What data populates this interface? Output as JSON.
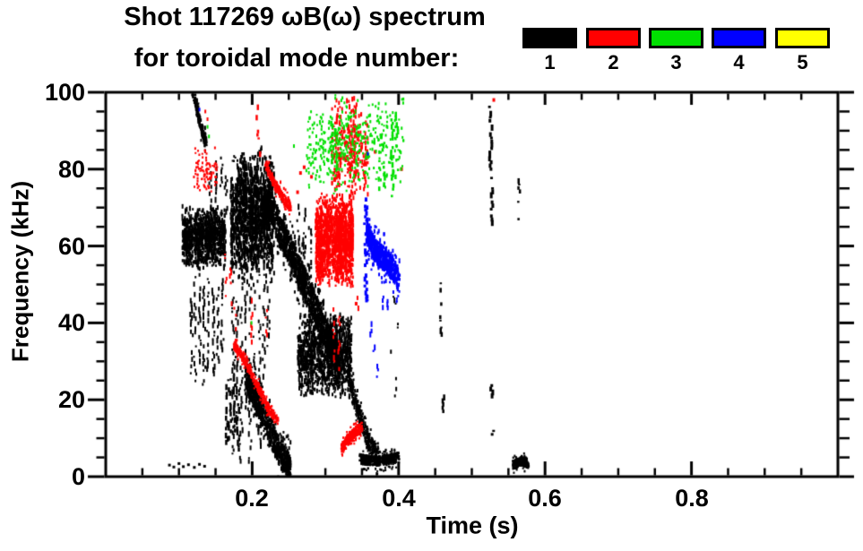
{
  "figure": {
    "title_line1": "Shot 117269 ωB(ω) spectrum",
    "title_line2": "for toroidal mode number:"
  },
  "chart_data": {
    "type": "scatter",
    "title": "Shot 117269 ωB(ω) spectrum for toroidal mode number: 1 2 3 4 5",
    "xlabel": "Time (s)",
    "ylabel": "Frequency (kHz)",
    "xlim": [
      0,
      1.0
    ],
    "ylim": [
      0,
      100
    ],
    "grid": false,
    "x_ticks": [
      {
        "v": 0.2,
        "label": "0.2"
      },
      {
        "v": 0.4,
        "label": "0.4"
      },
      {
        "v": 0.6,
        "label": "0.6"
      },
      {
        "v": 0.8,
        "label": "0.8"
      }
    ],
    "x_minor_step": 0.05,
    "y_ticks": [
      {
        "v": 0,
        "label": "0"
      },
      {
        "v": 20,
        "label": "20"
      },
      {
        "v": 40,
        "label": "40"
      },
      {
        "v": 60,
        "label": "60"
      },
      {
        "v": 80,
        "label": "80"
      },
      {
        "v": 100,
        "label": "100"
      }
    ],
    "y_minor_step": 5,
    "legend": [
      {
        "mode": 1,
        "label": "1",
        "color": "#000000"
      },
      {
        "mode": 2,
        "label": "2",
        "color": "#ff0000"
      },
      {
        "mode": 3,
        "label": "3",
        "color": "#00e000"
      },
      {
        "mode": 4,
        "label": "4",
        "color": "#0000ff"
      },
      {
        "mode": 5,
        "label": "5",
        "color": "#ffff00"
      }
    ],
    "features": [
      {
        "mode": 1,
        "kind": "band",
        "path": [
          [
            0.118,
            100
          ],
          [
            0.124,
            95
          ],
          [
            0.13,
            90
          ],
          [
            0.137,
            86
          ]
        ],
        "w": 2.5,
        "density": 22,
        "dash": [
          2,
          5
        ]
      },
      {
        "mode": 1,
        "kind": "blob",
        "t": [
          0.104,
          0.162
        ],
        "f": [
          54,
          71
        ],
        "n": 950,
        "dash": [
          2,
          6
        ]
      },
      {
        "mode": 1,
        "kind": "vlines",
        "lines": [
          [
            0.116,
            26,
            48
          ],
          [
            0.121,
            24,
            52
          ],
          [
            0.127,
            30,
            53
          ],
          [
            0.133,
            24,
            50
          ],
          [
            0.139,
            28,
            52
          ],
          [
            0.146,
            25,
            50
          ],
          [
            0.152,
            30,
            50
          ],
          [
            0.158,
            33,
            52
          ]
        ],
        "gap": 0.45,
        "w": 2
      },
      {
        "mode": 1,
        "kind": "vlines",
        "lines": [
          [
            0.142,
            70,
            80
          ],
          [
            0.15,
            72,
            82
          ],
          [
            0.157,
            73,
            83
          ],
          [
            0.163,
            68,
            79
          ]
        ],
        "gap": 0.4,
        "w": 2
      },
      {
        "mode": 1,
        "kind": "vlines",
        "lines": [
          [
            0.164,
            8,
            26
          ],
          [
            0.168,
            10,
            26
          ],
          [
            0.174,
            12,
            30
          ],
          [
            0.179,
            7,
            25
          ]
        ],
        "gap": 0.35,
        "w": 2.5
      },
      {
        "mode": 1,
        "kind": "blob",
        "t": [
          0.17,
          0.228
        ],
        "f": [
          50,
          86
        ],
        "n": 1500,
        "dash": [
          2,
          7
        ]
      },
      {
        "mode": 1,
        "kind": "vlines",
        "lines": [
          [
            0.173,
            6,
            50
          ],
          [
            0.178,
            14,
            50
          ],
          [
            0.184,
            4,
            52
          ],
          [
            0.19,
            18,
            50
          ],
          [
            0.196,
            3,
            50
          ],
          [
            0.202,
            22,
            50
          ],
          [
            0.209,
            8,
            50
          ],
          [
            0.215,
            26,
            50
          ],
          [
            0.221,
            34,
            50
          ]
        ],
        "gap": 0.5,
        "w": 2
      },
      {
        "mode": 1,
        "kind": "band",
        "path": [
          [
            0.212,
            68
          ],
          [
            0.224,
            71
          ],
          [
            0.237,
            64
          ],
          [
            0.252,
            58
          ],
          [
            0.266,
            52
          ],
          [
            0.28,
            46
          ],
          [
            0.295,
            39
          ],
          [
            0.31,
            33
          ],
          [
            0.32,
            30
          ]
        ],
        "w": 8,
        "density": 26,
        "dash": [
          2,
          6
        ]
      },
      {
        "mode": 1,
        "kind": "vlines",
        "lines": [
          [
            0.262,
            45,
            72
          ],
          [
            0.27,
            48,
            70
          ],
          [
            0.278,
            44,
            66
          ]
        ],
        "gap": 0.5,
        "w": 2
      },
      {
        "mode": 1,
        "kind": "blob",
        "t": [
          0.262,
          0.334
        ],
        "f": [
          20,
          43
        ],
        "n": 1100,
        "dash": [
          2,
          6
        ]
      },
      {
        "mode": 1,
        "kind": "band",
        "path": [
          [
            0.19,
            26
          ],
          [
            0.202,
            21
          ],
          [
            0.214,
            16
          ],
          [
            0.227,
            10
          ],
          [
            0.24,
            5
          ],
          [
            0.252,
            2
          ]
        ],
        "w": 7,
        "density": 30,
        "dash": [
          2,
          5
        ]
      },
      {
        "mode": 1,
        "kind": "band",
        "path": [
          [
            0.332,
            24
          ],
          [
            0.345,
            16
          ],
          [
            0.358,
            9
          ],
          [
            0.372,
            5
          ]
        ],
        "w": 5,
        "density": 18,
        "dash": [
          2,
          4
        ]
      },
      {
        "mode": 1,
        "kind": "band",
        "path": [
          [
            0.347,
            4.5
          ],
          [
            0.37,
            4
          ],
          [
            0.4,
            5
          ]
        ],
        "w": 2.5,
        "density": 22,
        "dash": [
          2,
          3
        ]
      },
      {
        "mode": 1,
        "kind": "dots",
        "pts": [
          [
            0.087,
            3
          ],
          [
            0.093,
            2.5
          ],
          [
            0.1,
            3.4
          ],
          [
            0.106,
            2.6
          ],
          [
            0.113,
            3.1
          ],
          [
            0.121,
            2.4
          ],
          [
            0.128,
            3.2
          ],
          [
            0.135,
            2.7
          ]
        ],
        "dash": [
          3,
          3
        ]
      },
      {
        "mode": 1,
        "kind": "vlines",
        "lines": [
          [
            0.456,
            44,
            51
          ],
          [
            0.457,
            37,
            42
          ],
          [
            0.459,
            17,
            21
          ]
        ],
        "gap": 0.3,
        "w": 2.5
      },
      {
        "mode": 1,
        "kind": "vlines",
        "lines": [
          [
            0.39,
            28,
            33
          ],
          [
            0.393,
            45,
            48
          ],
          [
            0.394,
            21,
            26
          ],
          [
            0.396,
            37,
            42
          ]
        ],
        "gap": 0.55,
        "w": 2
      },
      {
        "mode": 1,
        "kind": "vlines",
        "lines": [
          [
            0.524,
            80,
            97
          ],
          [
            0.526,
            66,
            78
          ],
          [
            0.525,
            21,
            24
          ],
          [
            0.527,
            11,
            13
          ]
        ],
        "gap": 0.25,
        "w": 3
      },
      {
        "mode": 1,
        "kind": "vlines",
        "lines": [
          [
            0.563,
            67,
            77
          ]
        ],
        "gap": 0.3,
        "w": 2.5
      },
      {
        "mode": 1,
        "kind": "band",
        "path": [
          [
            0.556,
            3
          ],
          [
            0.566,
            4.2
          ],
          [
            0.577,
            3.2
          ]
        ],
        "w": 2.2,
        "density": 24,
        "dash": [
          2,
          3
        ]
      },
      {
        "mode": 2,
        "kind": "blob",
        "t": [
          0.12,
          0.152
        ],
        "f": [
          73,
          86
        ],
        "n": 90,
        "dash": [
          2,
          3
        ]
      },
      {
        "mode": 2,
        "kind": "dots",
        "pts": [
          [
            0.136,
            95
          ],
          [
            0.139,
            93
          ]
        ],
        "dash": [
          2,
          4
        ]
      },
      {
        "mode": 2,
        "kind": "vlines",
        "lines": [
          [
            0.206,
            88,
            97
          ],
          [
            0.21,
            83,
            86
          ]
        ],
        "gap": 0.4,
        "w": 2.5
      },
      {
        "mode": 2,
        "kind": "band",
        "path": [
          [
            0.218,
            81
          ],
          [
            0.23,
            76
          ],
          [
            0.243,
            72
          ],
          [
            0.252,
            70
          ]
        ],
        "w": 2.5,
        "density": 12,
        "dash": [
          2,
          4
        ]
      },
      {
        "mode": 2,
        "kind": "dots",
        "pts": [
          [
            0.262,
            74
          ],
          [
            0.266,
            79
          ],
          [
            0.271,
            80.5
          ],
          [
            0.281,
            78
          ]
        ],
        "dash": [
          3,
          4
        ]
      },
      {
        "mode": 2,
        "kind": "vlines",
        "lines": [
          [
            0.163,
            47,
            58
          ],
          [
            0.17,
            45,
            55
          ],
          [
            0.176,
            33,
            50
          ],
          [
            0.198,
            35,
            46
          ],
          [
            0.218,
            36,
            44
          ]
        ],
        "gap": 0.6,
        "w": 2
      },
      {
        "mode": 2,
        "kind": "blob",
        "t": [
          0.286,
          0.336
        ],
        "f": [
          49,
          74
        ],
        "n": 1400,
        "dash": [
          2,
          6
        ]
      },
      {
        "mode": 2,
        "kind": "blob",
        "t": [
          0.308,
          0.356
        ],
        "f": [
          72,
          99
        ],
        "n": 330,
        "dash": [
          2,
          6
        ]
      },
      {
        "mode": 2,
        "kind": "band",
        "path": [
          [
            0.175,
            34
          ],
          [
            0.19,
            30
          ],
          [
            0.205,
            24
          ],
          [
            0.22,
            18
          ],
          [
            0.235,
            14
          ]
        ],
        "w": 2,
        "density": 16,
        "dash": [
          2,
          3
        ]
      },
      {
        "mode": 2,
        "kind": "band",
        "path": [
          [
            0.322,
            7.5
          ],
          [
            0.331,
            10
          ],
          [
            0.341,
            12
          ],
          [
            0.35,
            13
          ]
        ],
        "w": 2.5,
        "density": 18,
        "dash": [
          2,
          3
        ]
      },
      {
        "mode": 2,
        "kind": "vlines",
        "lines": [
          [
            0.31,
            30,
            49
          ],
          [
            0.318,
            28,
            45
          ],
          [
            0.335,
            48,
            62
          ],
          [
            0.342,
            42,
            47
          ]
        ],
        "gap": 0.55,
        "w": 2
      },
      {
        "mode": 2,
        "kind": "dots",
        "pts": [
          [
            0.53,
            98
          ],
          [
            0.368,
            84.5
          ],
          [
            0.398,
            54
          ],
          [
            0.404,
            80
          ],
          [
            0.342,
            45
          ]
        ],
        "dash": [
          3,
          4
        ]
      },
      {
        "mode": 3,
        "kind": "blob",
        "t": [
          0.272,
          0.405
        ],
        "f": [
          73,
          100
        ],
        "n": 380,
        "dash": [
          2,
          4
        ]
      },
      {
        "mode": 3,
        "kind": "vlines",
        "lines": [
          [
            0.308,
            81,
            92
          ],
          [
            0.313,
            80,
            90
          ],
          [
            0.372,
            74,
            86
          ],
          [
            0.378,
            76,
            88
          ],
          [
            0.39,
            73,
            93
          ],
          [
            0.396,
            78,
            95
          ]
        ],
        "gap": 0.45,
        "w": 2.5
      },
      {
        "mode": 3,
        "kind": "dots",
        "pts": [
          [
            0.139,
            91
          ],
          [
            0.141,
            88.5
          ],
          [
            0.199,
            40
          ],
          [
            0.257,
            86
          ]
        ],
        "dash": [
          2,
          4
        ]
      },
      {
        "mode": 4,
        "kind": "vlines",
        "lines": [
          [
            0.353,
            46,
            73
          ]
        ],
        "gap": 0.3,
        "w": 3
      },
      {
        "mode": 4,
        "kind": "band",
        "path": [
          [
            0.356,
            64
          ],
          [
            0.363,
            60
          ],
          [
            0.371,
            58
          ],
          [
            0.38,
            56.5
          ],
          [
            0.388,
            55
          ],
          [
            0.395,
            52.5
          ],
          [
            0.401,
            50.5
          ]
        ],
        "w": 6,
        "density": 26,
        "dash": [
          2,
          5
        ]
      },
      {
        "mode": 4,
        "kind": "vlines",
        "lines": [
          [
            0.357,
            45,
            48
          ],
          [
            0.361,
            37,
            42
          ],
          [
            0.365,
            30,
            34
          ],
          [
            0.371,
            26,
            29
          ],
          [
            0.377,
            44,
            47
          ],
          [
            0.384,
            43,
            46
          ]
        ],
        "gap": 0.5,
        "w": 2
      },
      {
        "mode": 4,
        "kind": "dots",
        "pts": [
          [
            0.358,
            84
          ],
          [
            0.128,
            95.5
          ]
        ],
        "dash": [
          2,
          4
        ]
      }
    ]
  }
}
